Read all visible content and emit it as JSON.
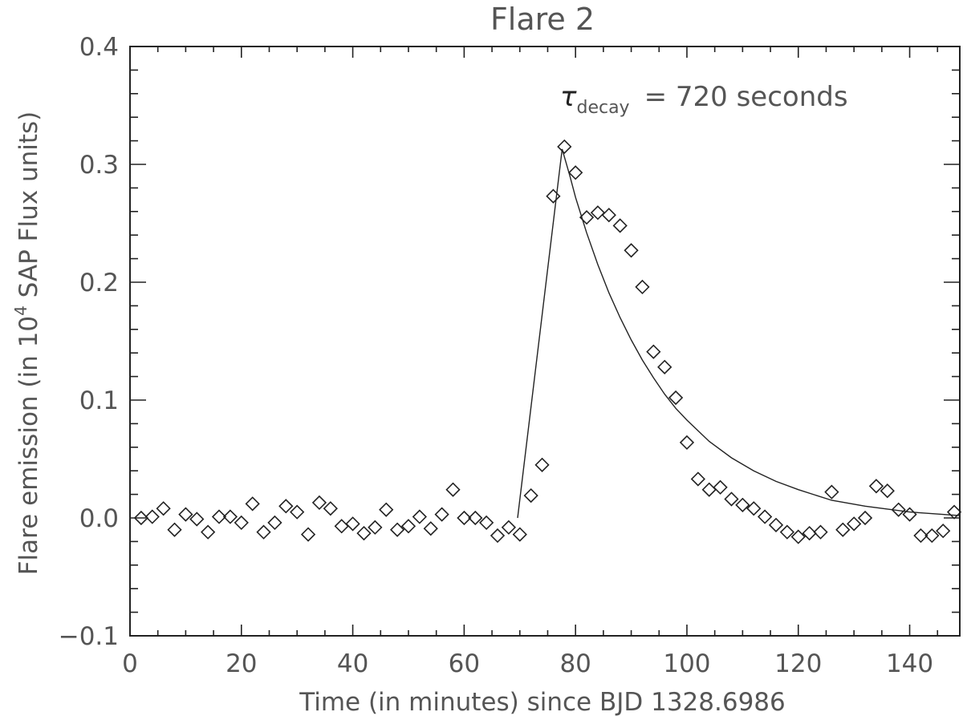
{
  "chart_data": {
    "type": "scatter",
    "title": "Flare 2",
    "xlabel": "Time (in minutes) since BJD 1328.6986",
    "ylabel_parts": {
      "before": "Flare emission (in 10",
      "sup": "4",
      "after": " SAP Flux units)"
    },
    "xlim": [
      0,
      149
    ],
    "ylim": [
      -0.1,
      0.4
    ],
    "x_ticks": [
      0,
      20,
      40,
      60,
      80,
      100,
      120,
      140
    ],
    "x_tick_labels": [
      "0",
      "20",
      "40",
      "60",
      "80",
      "100",
      "120",
      "140"
    ],
    "y_ticks": [
      -0.1,
      0.0,
      0.1,
      0.2,
      0.3,
      0.4
    ],
    "y_tick_labels": [
      "−0.1",
      "0.0",
      "0.1",
      "0.2",
      "0.3",
      "0.4"
    ],
    "grid": false,
    "annotation": {
      "symbol": "τ",
      "subscript": "decay",
      "text": "= 720  seconds"
    },
    "series": [
      {
        "marker": "diamond",
        "x": [
          2,
          4,
          6,
          8,
          10,
          12,
          14,
          16,
          18,
          20,
          22,
          24,
          26,
          28,
          30,
          32,
          34,
          36,
          38,
          40,
          42,
          44,
          46,
          48,
          50,
          52,
          54,
          56,
          58,
          60,
          62,
          64,
          66,
          68,
          70,
          72,
          74,
          76,
          78,
          80,
          82,
          84,
          86,
          88,
          90,
          92,
          94,
          96,
          98,
          100,
          102,
          104,
          106,
          108,
          110,
          112,
          114,
          116,
          118,
          120,
          122,
          124,
          126,
          128,
          130,
          132,
          134,
          136,
          138,
          140,
          142,
          144,
          146,
          148
        ],
        "y": [
          0.0,
          0.001,
          0.008,
          -0.01,
          0.003,
          -0.001,
          -0.012,
          0.001,
          0.001,
          -0.004,
          0.012,
          -0.012,
          -0.004,
          0.01,
          0.005,
          -0.014,
          0.013,
          0.008,
          -0.007,
          -0.005,
          -0.013,
          -0.008,
          0.007,
          -0.01,
          -0.007,
          0.001,
          -0.009,
          0.003,
          0.024,
          0.0,
          0.0,
          -0.004,
          -0.015,
          -0.008,
          -0.014,
          0.019,
          0.045,
          0.273,
          0.315,
          0.293,
          0.255,
          0.259,
          0.257,
          0.248,
          0.227,
          0.196,
          0.141,
          0.128,
          0.102,
          0.064,
          0.033,
          0.024,
          0.026,
          0.016,
          0.011,
          0.008,
          0.001,
          -0.006,
          -0.012,
          -0.016,
          -0.013,
          -0.012,
          0.022,
          -0.01,
          -0.005,
          0.0,
          0.027,
          0.023,
          0.007,
          0.003,
          -0.015,
          -0.015,
          -0.011,
          0.005
        ]
      },
      {
        "line": "model",
        "x": [
          69.6,
          77.6,
          79,
          80,
          82,
          84,
          86,
          88,
          90,
          92,
          94,
          96,
          98,
          100,
          104,
          108,
          112,
          116,
          120,
          126,
          132,
          140,
          149
        ],
        "y": [
          0.0,
          0.313,
          0.29,
          0.272,
          0.242,
          0.215,
          0.191,
          0.17,
          0.151,
          0.134,
          0.119,
          0.105,
          0.093,
          0.083,
          0.065,
          0.051,
          0.04,
          0.031,
          0.024,
          0.015,
          0.01,
          0.005,
          0.002
        ]
      }
    ]
  }
}
